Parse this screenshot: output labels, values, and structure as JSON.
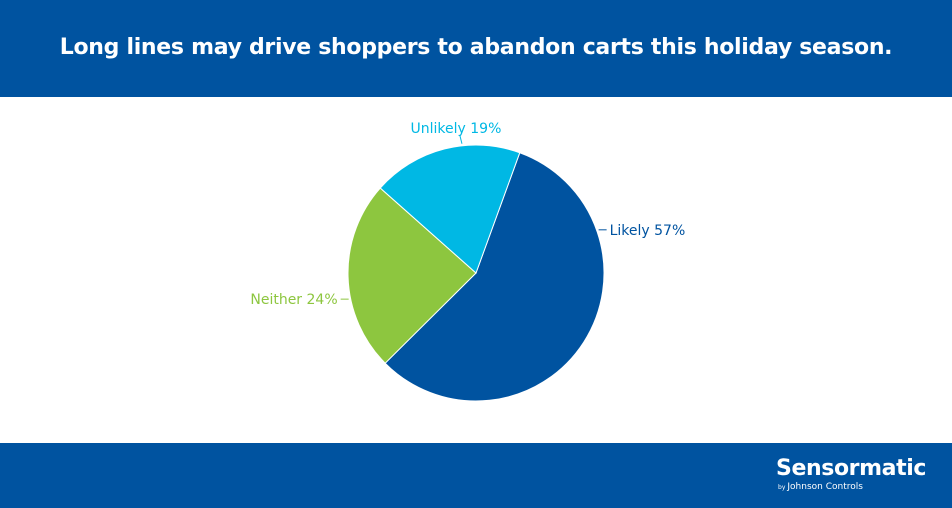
{
  "header": {
    "title": "Long lines may drive shoppers to abandon carts this holiday season."
  },
  "chart_data": {
    "type": "pie",
    "title": "Long lines may drive shoppers to abandon carts this holiday season.",
    "slices": [
      {
        "label": "Likely",
        "value": 57,
        "display": "Likely 57%",
        "color": "#0053a0"
      },
      {
        "label": "Neither",
        "value": 24,
        "display": "Neither 24%",
        "color": "#8dc63f"
      },
      {
        "label": "Unlikely",
        "value": 19,
        "display": "Unlikely 19%",
        "color": "#00b8e4"
      }
    ],
    "start_angle_deg": 20,
    "direction": "clockwise",
    "legend": "none",
    "data_labels": "outside"
  },
  "footer": {
    "logo_text": "Sensormatic",
    "logo_by": "by",
    "logo_sub": "Johnson Controls"
  }
}
